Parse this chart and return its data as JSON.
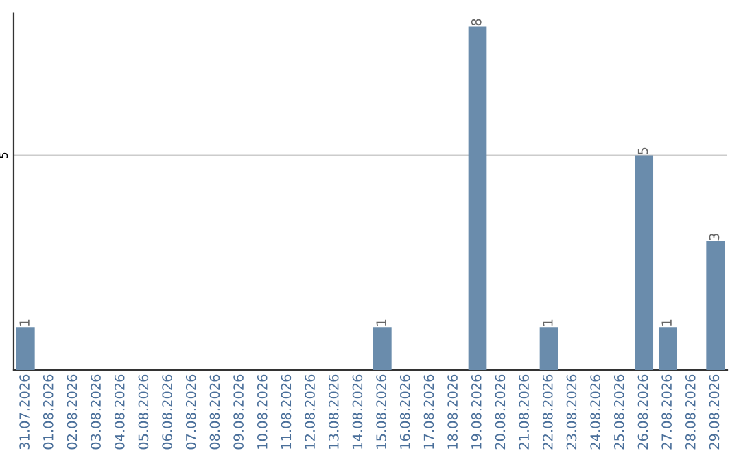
{
  "chart_data": {
    "type": "bar",
    "categories": [
      "31.07.2026",
      "01.08.2026",
      "02.08.2026",
      "03.08.2026",
      "04.08.2026",
      "05.08.2026",
      "06.08.2026",
      "07.08.2026",
      "08.08.2026",
      "09.08.2026",
      "10.08.2026",
      "11.08.2026",
      "12.08.2026",
      "13.08.2026",
      "14.08.2026",
      "15.08.2026",
      "16.08.2026",
      "17.08.2026",
      "18.08.2026",
      "19.08.2026",
      "20.08.2026",
      "21.08.2026",
      "22.08.2026",
      "23.08.2026",
      "24.08.2026",
      "25.08.2026",
      "26.08.2026",
      "27.08.2026",
      "28.08.2026",
      "29.08.2026"
    ],
    "values": [
      1,
      0,
      0,
      0,
      0,
      0,
      0,
      0,
      0,
      0,
      0,
      0,
      0,
      0,
      0,
      1,
      0,
      0,
      0,
      8,
      0,
      0,
      1,
      0,
      0,
      0,
      5,
      1,
      0,
      3
    ],
    "value_labels": [
      "1",
      null,
      null,
      null,
      null,
      null,
      null,
      null,
      null,
      null,
      null,
      null,
      null,
      null,
      null,
      "1",
      null,
      null,
      null,
      "8",
      null,
      null,
      "1",
      null,
      null,
      null,
      "5",
      "1",
      null,
      "3"
    ],
    "color": "#6a8cac",
    "ylim": [
      0,
      8.3
    ],
    "yticks": [
      5
    ],
    "grid": "y"
  }
}
